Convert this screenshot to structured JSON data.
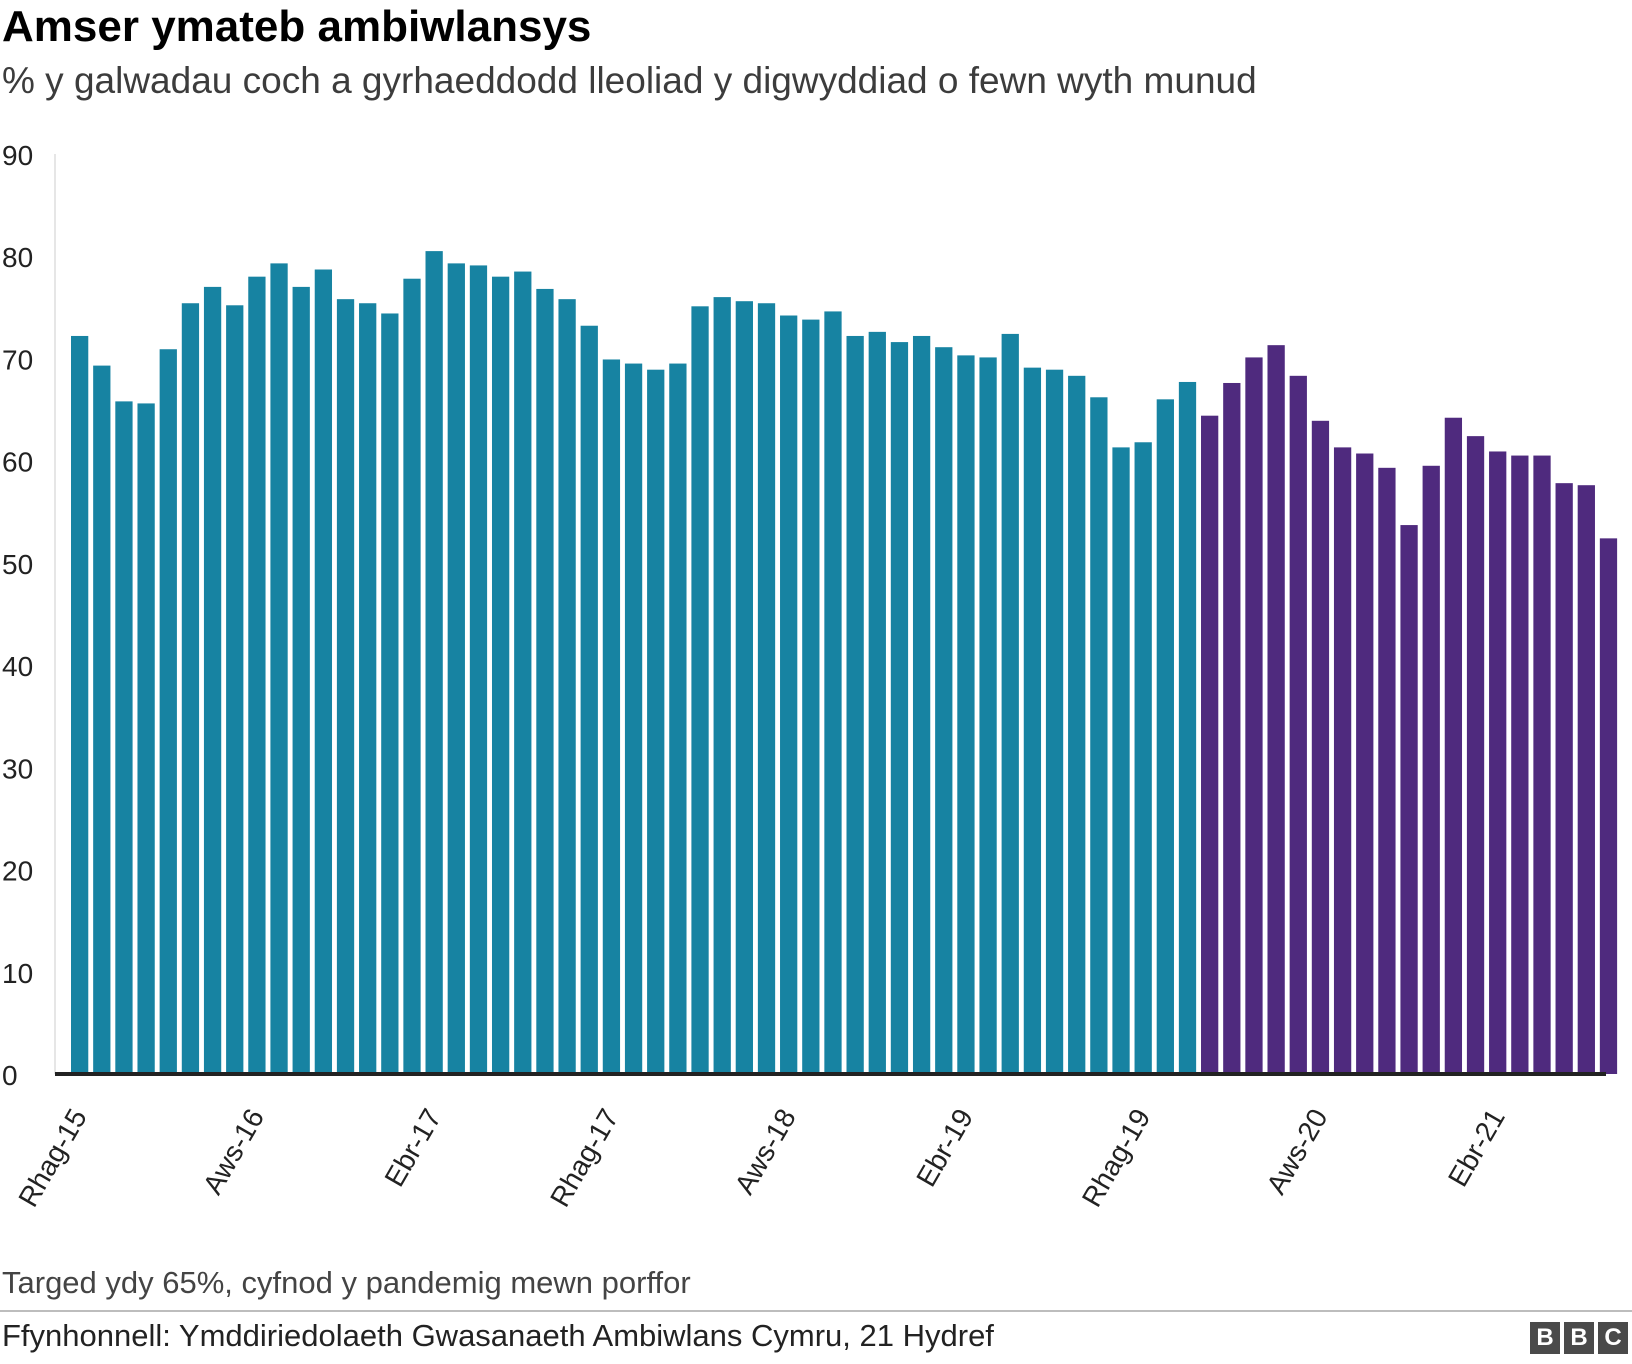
{
  "title": "Amser ymateb ambiwlansys",
  "subtitle": "% y galwadau coch a gyrhaeddodd lleoliad y digwyddiad o fewn wyth munud",
  "note": "Targed ydy 65%, cyfnod y pandemig mewn porffor",
  "source": "Ffynhonnell: Ymddiriedolaeth Gwasanaeth Ambiwlans Cymru, 21 Hydref",
  "logo": [
    "B",
    "B",
    "C"
  ],
  "colors": {
    "pre_pandemic": "#1783a2",
    "pandemic": "#4f2a7e"
  },
  "chart_data": {
    "type": "bar",
    "ylim": [
      0,
      90
    ],
    "yticks": [
      0,
      10,
      20,
      30,
      40,
      50,
      60,
      70,
      80,
      90
    ],
    "grid": false,
    "x_labels": [
      {
        "index": 0,
        "label": "Rhag-15"
      },
      {
        "index": 8,
        "label": "Aws-16"
      },
      {
        "index": 16,
        "label": "Ebr-17"
      },
      {
        "index": 24,
        "label": "Rhag-17"
      },
      {
        "index": 32,
        "label": "Aws-18"
      },
      {
        "index": 40,
        "label": "Ebr-19"
      },
      {
        "index": 48,
        "label": "Rhag-19"
      },
      {
        "index": 56,
        "label": "Aws-20"
      },
      {
        "index": 64,
        "label": "Ebr-21"
      }
    ],
    "pandemic_start_index": 51,
    "values": [
      72.2,
      69.3,
      65.8,
      65.6,
      70.9,
      75.4,
      77.0,
      75.2,
      78.0,
      79.3,
      77.0,
      78.7,
      75.8,
      75.4,
      74.4,
      77.8,
      80.5,
      79.3,
      79.1,
      78.0,
      78.5,
      76.8,
      75.8,
      73.2,
      69.9,
      69.5,
      68.9,
      69.5,
      75.1,
      76.0,
      75.6,
      75.4,
      74.2,
      73.8,
      74.6,
      72.2,
      72.6,
      71.6,
      72.2,
      71.1,
      70.3,
      70.1,
      72.4,
      69.1,
      68.9,
      68.3,
      66.2,
      61.3,
      61.8,
      66.0,
      67.7,
      64.4,
      67.6,
      70.1,
      71.3,
      68.3,
      63.9,
      61.3,
      60.7,
      59.3,
      53.7,
      59.5,
      64.2,
      62.4,
      60.9,
      60.5,
      60.5,
      57.8,
      57.6,
      52.4
    ]
  }
}
